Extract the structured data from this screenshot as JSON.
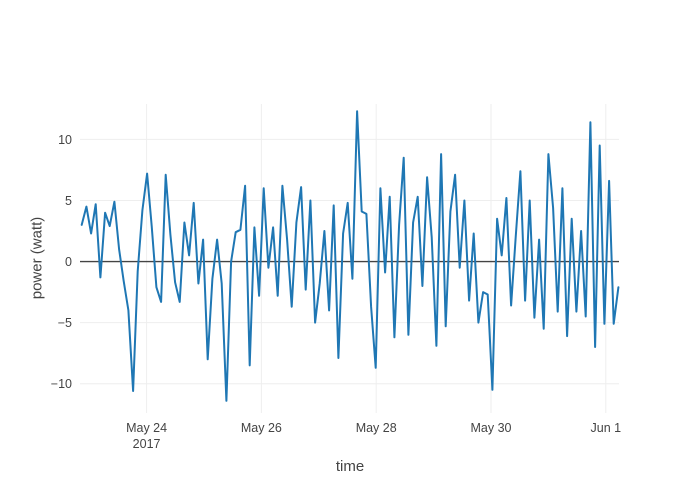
{
  "chart_data": {
    "type": "line",
    "title": "",
    "xlabel": "time",
    "ylabel": "power (watt)",
    "legend": false,
    "grid": true,
    "plot_bgcolor": "#ffffff",
    "paper_bgcolor": "#ffffff",
    "line_color": "#1f77b4",
    "line_width": 2,
    "grid_color": "#eeeeee",
    "zeroline_color": "#444444",
    "text_color": "#444444",
    "x_axis": {
      "unit": "days since 2017-05-22 00:00",
      "range": [
        0.84,
        10.23
      ],
      "ticks": [
        {
          "pos": 2,
          "label": "May 24",
          "sublabel": "2017"
        },
        {
          "pos": 4,
          "label": "May 26",
          "sublabel": ""
        },
        {
          "pos": 6,
          "label": "May 28",
          "sublabel": ""
        },
        {
          "pos": 8,
          "label": "May 30",
          "sublabel": ""
        },
        {
          "pos": 10,
          "label": "Jun 1",
          "sublabel": ""
        }
      ]
    },
    "y_axis": {
      "range": [
        -12.4,
        12.9
      ],
      "ticks": [
        {
          "pos": -10,
          "label": "−10"
        },
        {
          "pos": -5,
          "label": "−5"
        },
        {
          "pos": 0,
          "label": "0"
        },
        {
          "pos": 5,
          "label": "5"
        },
        {
          "pos": 10,
          "label": "10"
        }
      ]
    },
    "series": [
      {
        "name": "power",
        "x_start": 0.87,
        "x_step": 0.0813,
        "values": [
          3.0,
          4.5,
          2.3,
          4.7,
          -1.3,
          4.0,
          2.9,
          4.9,
          1.0,
          -1.6,
          -4.0,
          -10.6,
          -0.8,
          4.2,
          7.2,
          2.9,
          -2.1,
          -3.3,
          7.1,
          2.2,
          -1.7,
          -3.3,
          3.2,
          0.5,
          4.8,
          -1.8,
          1.8,
          -8.0,
          -1.4,
          1.8,
          -1.8,
          -11.4,
          0.0,
          2.4,
          2.6,
          6.2,
          -8.5,
          2.8,
          -2.8,
          6.0,
          -0.5,
          2.8,
          -2.8,
          6.2,
          1.8,
          -3.7,
          3.2,
          6.1,
          -2.3,
          5.0,
          -5.0,
          -1.8,
          2.5,
          -4.0,
          4.6,
          -7.9,
          2.3,
          4.8,
          -1.4,
          12.3,
          4.1,
          3.9,
          -3.7,
          -8.7,
          6.0,
          -0.9,
          5.3,
          -6.2,
          3.0,
          8.5,
          -6.0,
          3.2,
          5.3,
          -2.0,
          6.9,
          2.0,
          -6.9,
          8.8,
          -5.3,
          4.1,
          7.1,
          -0.5,
          5.0,
          -3.2,
          2.3,
          -5.0,
          -2.5,
          -2.7,
          -10.5,
          3.5,
          0.5,
          5.2,
          -3.6,
          2.0,
          7.4,
          -3.2,
          5.0,
          -4.6,
          1.8,
          -5.5,
          8.8,
          4.4,
          -4.1,
          6.0,
          -6.1,
          3.5,
          -4.1,
          2.5,
          -4.5,
          11.4,
          -7.0,
          9.5,
          -5.1,
          6.6,
          -5.1,
          -2.1
        ]
      }
    ]
  }
}
